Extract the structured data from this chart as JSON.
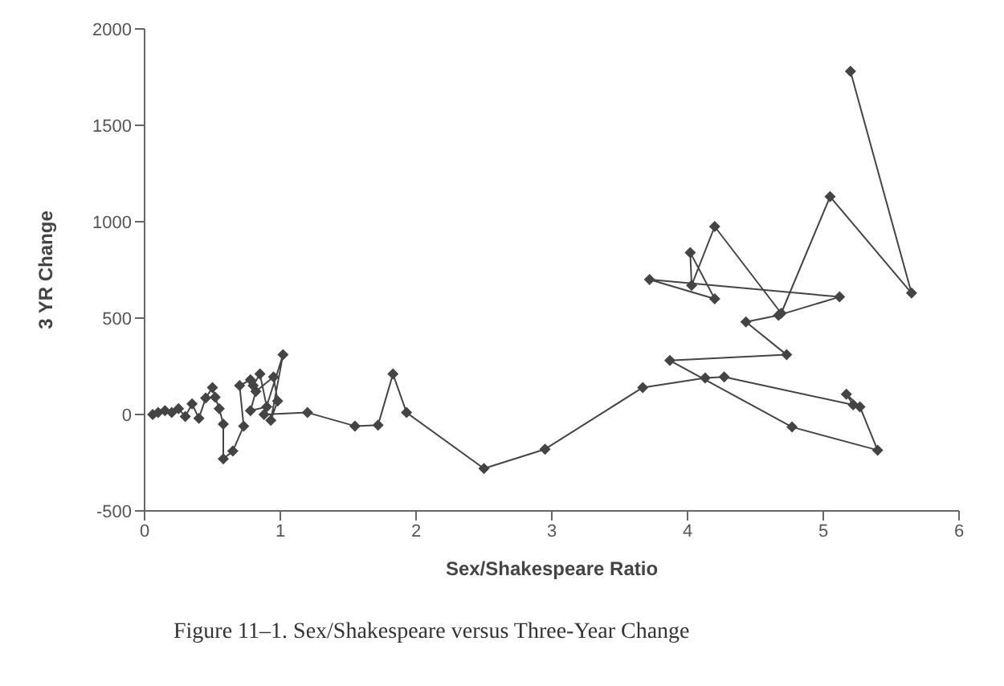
{
  "chart_data": {
    "type": "line",
    "title": "Figure 11–1.    Sex/Shakespeare versus Three-Year Change",
    "xlabel": "Sex/Shakespeare Ratio",
    "ylabel": "3 YR Change",
    "xlim": [
      0,
      6
    ],
    "xticks": [
      0,
      1,
      2,
      3,
      4,
      5,
      6
    ],
    "ylim": [
      -500,
      2000
    ],
    "yticks": [
      -500,
      0,
      500,
      1000,
      1500,
      2000
    ],
    "marker": "diamond",
    "line_style": "solid",
    "series": [
      {
        "color": "#444444",
        "x": [
          0.06,
          0.1,
          0.15,
          0.2,
          0.25,
          0.3,
          0.35,
          0.4,
          0.45,
          0.5,
          0.52,
          0.55,
          0.58,
          0.58,
          0.65,
          0.73,
          0.7,
          0.78,
          0.8,
          0.85,
          0.9,
          0.78,
          0.82,
          0.95,
          0.98,
          0.93,
          1.02,
          0.88,
          1.2,
          1.55,
          1.72,
          1.83,
          1.93,
          2.5,
          2.95,
          3.67,
          4.13,
          4.27,
          5.22,
          5.17,
          5.27,
          5.4,
          4.77,
          3.87,
          4.73,
          4.43,
          4.67,
          5.12,
          3.72,
          4.2,
          4.02,
          4.03,
          4.2,
          4.69,
          5.05,
          5.65,
          5.2
        ],
        "values": [
          0,
          10,
          20,
          10,
          30,
          -10,
          55,
          -20,
          85,
          140,
          90,
          30,
          -50,
          -230,
          -190,
          -60,
          150,
          180,
          150,
          210,
          40,
          20,
          120,
          195,
          70,
          -30,
          310,
          0,
          10,
          -60,
          -55,
          210,
          10,
          -280,
          -180,
          140,
          190,
          195,
          50,
          105,
          40,
          -185,
          -65,
          280,
          310,
          480,
          515,
          610,
          700,
          600,
          840,
          670,
          975,
          525,
          1130,
          630,
          1780
        ]
      }
    ]
  }
}
